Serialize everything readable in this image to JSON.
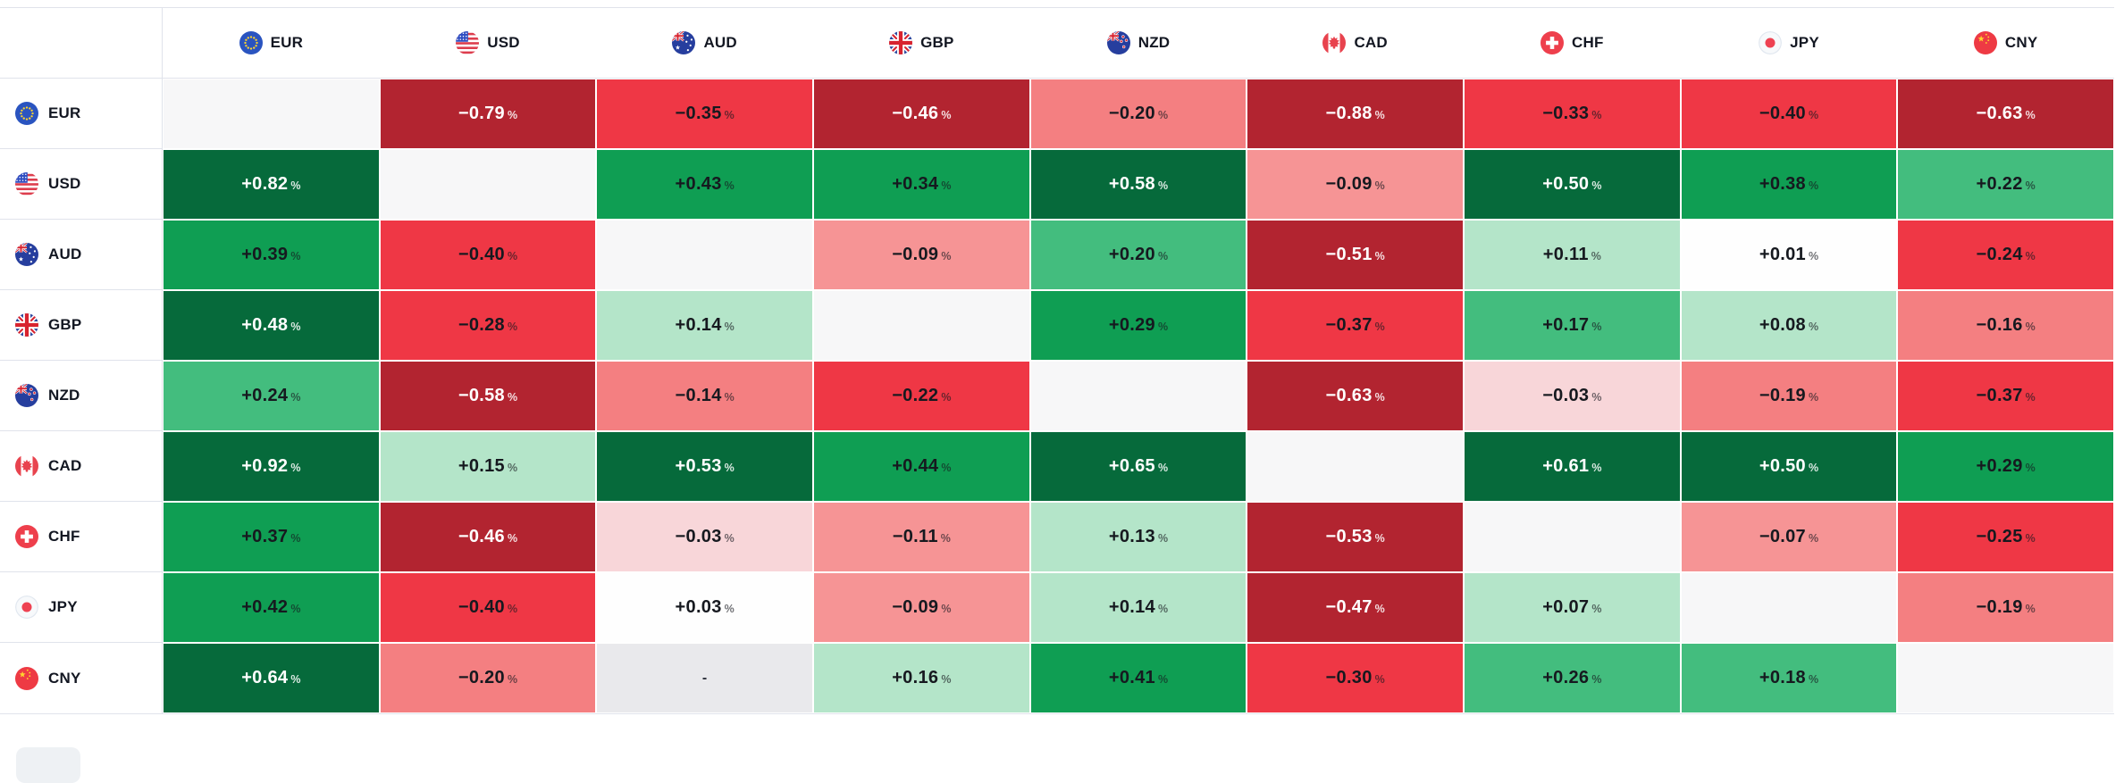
{
  "heatmap": {
    "columns": [
      "EUR",
      "USD",
      "AUD",
      "GBP",
      "NZD",
      "CAD",
      "CHF",
      "JPY",
      "CNY"
    ],
    "rows": [
      "EUR",
      "USD",
      "AUD",
      "GBP",
      "NZD",
      "CAD",
      "CHF",
      "JPY",
      "CNY"
    ],
    "unit": "%",
    "no_data_placeholder": "-",
    "cells": [
      [
        {
          "lvl": "diag"
        },
        {
          "t": "−0.79",
          "lvl": "r4"
        },
        {
          "t": "−0.35",
          "lvl": "r3"
        },
        {
          "t": "−0.46",
          "lvl": "r4"
        },
        {
          "t": "−0.20",
          "lvl": "r2"
        },
        {
          "t": "−0.88",
          "lvl": "r4"
        },
        {
          "t": "−0.33",
          "lvl": "r3"
        },
        {
          "t": "−0.40",
          "lvl": "r3"
        },
        {
          "t": "−0.63",
          "lvl": "r4"
        }
      ],
      [
        {
          "t": "+0.82",
          "lvl": "g5"
        },
        {
          "lvl": "diag"
        },
        {
          "t": "+0.43",
          "lvl": "g4"
        },
        {
          "t": "+0.34",
          "lvl": "g4"
        },
        {
          "t": "+0.58",
          "lvl": "g5"
        },
        {
          "t": "−0.09",
          "lvl": "r2l"
        },
        {
          "t": "+0.50",
          "lvl": "g5"
        },
        {
          "t": "+0.38",
          "lvl": "g4"
        },
        {
          "t": "+0.22",
          "lvl": "g3"
        }
      ],
      [
        {
          "t": "+0.39",
          "lvl": "g4"
        },
        {
          "t": "−0.40",
          "lvl": "r3"
        },
        {
          "lvl": "diag"
        },
        {
          "t": "−0.09",
          "lvl": "r2l"
        },
        {
          "t": "+0.20",
          "lvl": "g3"
        },
        {
          "t": "−0.51",
          "lvl": "r4"
        },
        {
          "t": "+0.11",
          "lvl": "g2"
        },
        {
          "t": "+0.01",
          "lvl": "w"
        },
        {
          "t": "−0.24",
          "lvl": "r3"
        }
      ],
      [
        {
          "t": "+0.48",
          "lvl": "g5"
        },
        {
          "t": "−0.28",
          "lvl": "r3"
        },
        {
          "t": "+0.14",
          "lvl": "g2"
        },
        {
          "lvl": "diag"
        },
        {
          "t": "+0.29",
          "lvl": "g4"
        },
        {
          "t": "−0.37",
          "lvl": "r3"
        },
        {
          "t": "+0.17",
          "lvl": "g3"
        },
        {
          "t": "+0.08",
          "lvl": "g2"
        },
        {
          "t": "−0.16",
          "lvl": "r2"
        }
      ],
      [
        {
          "t": "+0.24",
          "lvl": "g3"
        },
        {
          "t": "−0.58",
          "lvl": "r4"
        },
        {
          "t": "−0.14",
          "lvl": "r2"
        },
        {
          "t": "−0.22",
          "lvl": "r3"
        },
        {
          "lvl": "diag"
        },
        {
          "t": "−0.63",
          "lvl": "r4"
        },
        {
          "t": "−0.03",
          "lvl": "r1"
        },
        {
          "t": "−0.19",
          "lvl": "r2"
        },
        {
          "t": "−0.37",
          "lvl": "r3"
        }
      ],
      [
        {
          "t": "+0.92",
          "lvl": "g5"
        },
        {
          "t": "+0.15",
          "lvl": "g2"
        },
        {
          "t": "+0.53",
          "lvl": "g5"
        },
        {
          "t": "+0.44",
          "lvl": "g4"
        },
        {
          "t": "+0.65",
          "lvl": "g5"
        },
        {
          "lvl": "diag"
        },
        {
          "t": "+0.61",
          "lvl": "g5"
        },
        {
          "t": "+0.50",
          "lvl": "g5"
        },
        {
          "t": "+0.29",
          "lvl": "g4"
        }
      ],
      [
        {
          "t": "+0.37",
          "lvl": "g4"
        },
        {
          "t": "−0.46",
          "lvl": "r4"
        },
        {
          "t": "−0.03",
          "lvl": "r1"
        },
        {
          "t": "−0.11",
          "lvl": "r2l"
        },
        {
          "t": "+0.13",
          "lvl": "g2"
        },
        {
          "t": "−0.53",
          "lvl": "r4"
        },
        {
          "lvl": "diag"
        },
        {
          "t": "−0.07",
          "lvl": "r2l"
        },
        {
          "t": "−0.25",
          "lvl": "r3"
        }
      ],
      [
        {
          "t": "+0.42",
          "lvl": "g4"
        },
        {
          "t": "−0.40",
          "lvl": "r3"
        },
        {
          "t": "+0.03",
          "lvl": "w"
        },
        {
          "t": "−0.09",
          "lvl": "r2l"
        },
        {
          "t": "+0.14",
          "lvl": "g2"
        },
        {
          "t": "−0.47",
          "lvl": "r4"
        },
        {
          "t": "+0.07",
          "lvl": "g2"
        },
        {
          "lvl": "diag"
        },
        {
          "t": "−0.19",
          "lvl": "r2"
        }
      ],
      [
        {
          "t": "+0.64",
          "lvl": "g5"
        },
        {
          "t": "−0.20",
          "lvl": "r2"
        },
        {
          "t": "-",
          "lvl": "nd"
        },
        {
          "t": "+0.16",
          "lvl": "g2"
        },
        {
          "t": "+0.41",
          "lvl": "g4"
        },
        {
          "t": "−0.30",
          "lvl": "r3"
        },
        {
          "t": "+0.26",
          "lvl": "g3"
        },
        {
          "t": "+0.18",
          "lvl": "g3"
        },
        {
          "lvl": "diag"
        }
      ]
    ]
  },
  "palette": {
    "g5": "#066a3b",
    "g4": "#0f9e53",
    "g3": "#43bd7e",
    "g2": "#b4e5c9",
    "w": "#fefefe",
    "r1": "#f8d6d9",
    "r2l": "#f69495",
    "r2": "#f47f81",
    "r3": "#ef3745",
    "r4": "#b22430",
    "diag": "#f7f7f8",
    "nd": "#e9e9ec",
    "grid_line": "#e0e3eb",
    "label_text": "#131722"
  },
  "light_text_levels": [
    "g5",
    "r4"
  ],
  "icons": [
    "eur-flag-icon",
    "usd-flag-icon",
    "aud-flag-icon",
    "gbp-flag-icon",
    "nzd-flag-icon",
    "cad-flag-icon",
    "chf-flag-icon",
    "jpy-flag-icon",
    "cny-flag-icon"
  ],
  "chart_data": {
    "type": "heatmap",
    "rows": [
      "EUR",
      "USD",
      "AUD",
      "GBP",
      "NZD",
      "CAD",
      "CHF",
      "JPY",
      "CNY"
    ],
    "columns": [
      "EUR",
      "USD",
      "AUD",
      "GBP",
      "NZD",
      "CAD",
      "CHF",
      "JPY",
      "CNY"
    ],
    "unit": "%",
    "values": [
      [
        null,
        -0.79,
        -0.35,
        -0.46,
        -0.2,
        -0.88,
        -0.33,
        -0.4,
        -0.63
      ],
      [
        0.82,
        null,
        0.43,
        0.34,
        0.58,
        -0.09,
        0.5,
        0.38,
        0.22
      ],
      [
        0.39,
        -0.4,
        null,
        -0.09,
        0.2,
        -0.51,
        0.11,
        0.01,
        -0.24
      ],
      [
        0.48,
        -0.28,
        0.14,
        null,
        0.29,
        -0.37,
        0.17,
        0.08,
        -0.16
      ],
      [
        0.24,
        -0.58,
        -0.14,
        -0.22,
        null,
        -0.63,
        -0.03,
        -0.19,
        -0.37
      ],
      [
        0.92,
        0.15,
        0.53,
        0.44,
        0.65,
        null,
        0.61,
        0.5,
        0.29
      ],
      [
        0.37,
        -0.46,
        -0.03,
        -0.11,
        0.13,
        -0.53,
        null,
        -0.07,
        -0.25
      ],
      [
        0.42,
        -0.4,
        0.03,
        -0.09,
        0.14,
        -0.47,
        0.07,
        null,
        -0.19
      ],
      [
        0.64,
        -0.2,
        null,
        0.16,
        0.41,
        -0.3,
        0.26,
        0.18,
        null
      ]
    ],
    "no_data_cells": [
      [
        "CNY",
        "AUD"
      ]
    ],
    "legend_position": "none",
    "grid": true,
    "color_scale": "green positive / red negative, darker = larger magnitude"
  }
}
